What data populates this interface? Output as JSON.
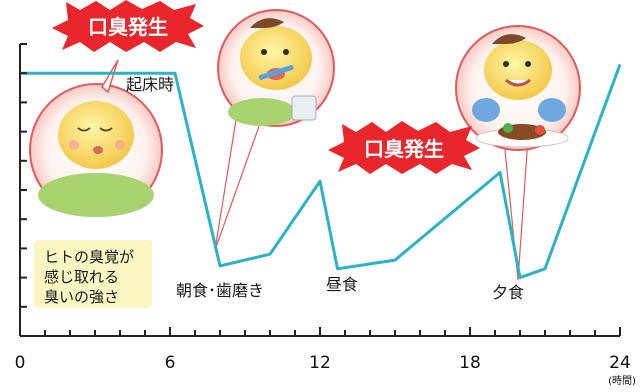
{
  "chart_data": {
    "type": "line",
    "title": "",
    "xlabel": "",
    "ylabel": "",
    "x_unit": "(時間)",
    "xlim": [
      0,
      24
    ],
    "ylim": [
      0,
      10
    ],
    "x_ticks": [
      0,
      6,
      12,
      18,
      24
    ],
    "x_tick_labels": [
      "0",
      "6",
      "12",
      "18",
      "24"
    ],
    "grid": false,
    "legend": "none",
    "series": [
      {
        "color": "#2bb3c4",
        "x": [
          0,
          6.2,
          8,
          10,
          12,
          12.7,
          15,
          19.2,
          20,
          21,
          24
        ],
        "y": [
          9.0,
          9.0,
          2.4,
          2.8,
          5.3,
          2.3,
          2.6,
          5.6,
          2.0,
          2.3,
          9.3
        ]
      }
    ],
    "annotations": {
      "wake": "起床時",
      "breakfast": "朝食･歯磨き",
      "lunch": "昼食",
      "dinner": "夕食",
      "bad_breath_1": "口臭発生",
      "bad_breath_2": "口臭発生",
      "threshold_note": [
        "ヒトの臭覚が",
        "感じ取れる",
        "臭いの強さ"
      ]
    }
  },
  "colors": {
    "line": "#2bb3c4",
    "axis": "#222222",
    "burst": "#e8262b",
    "note_bg": "#fbf6c2",
    "bubble_ring": "#e25a5a"
  },
  "illustrations": [
    "sleeping-face-icon",
    "brushing-teeth-face-icon",
    "eating-face-icon"
  ]
}
